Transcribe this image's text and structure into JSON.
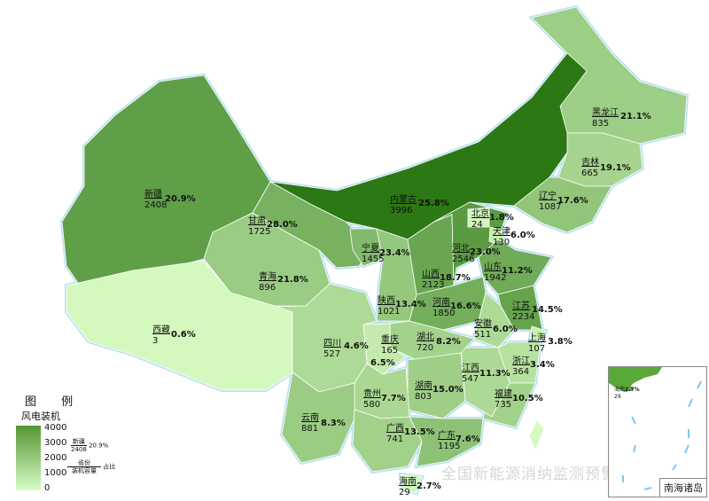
{
  "legend": {
    "title": "图 例",
    "subtitle": "风电装机",
    "ticks": [
      "4000",
      "3000",
      "2000",
      "1000",
      "0"
    ],
    "scale_max": 4000,
    "example": {
      "name": "新疆",
      "capacity": "2408",
      "share": "20.9%"
    },
    "key_name": "省份",
    "key_capacity": "装机容量",
    "key_share": "占比",
    "color_low": "#d6f9bf",
    "color_high": "#2c7814"
  },
  "watermark": "全国新能源消纳监测预警中心",
  "inset_label": "南海诸岛",
  "inset_hainan": {
    "name": "海南",
    "capacity": "29",
    "share": "2.7%"
  },
  "provinces": [
    {
      "name": "新疆",
      "capacity": "2408",
      "share": "20.9%"
    },
    {
      "name": "西藏",
      "capacity": "3",
      "share": "0.6%"
    },
    {
      "name": "青海",
      "capacity": "896",
      "share": "21.8%"
    },
    {
      "name": "甘肃",
      "capacity": "1725",
      "share": "28.0%"
    },
    {
      "name": "内蒙古",
      "capacity": "3996",
      "share": "25.8%"
    },
    {
      "name": "黑龙江",
      "capacity": "835",
      "share": "21.1%"
    },
    {
      "name": "吉林",
      "capacity": "665",
      "share": "19.1%"
    },
    {
      "name": "辽宁",
      "capacity": "1087",
      "share": "17.6%"
    },
    {
      "name": "宁夏",
      "capacity": "1455",
      "share": "23.4%"
    },
    {
      "name": "陕西",
      "capacity": "1021",
      "share": "13.4%"
    },
    {
      "name": "山西",
      "capacity": "2123",
      "share": "18.7%"
    },
    {
      "name": "河北",
      "capacity": "2546",
      "share": "23.0%"
    },
    {
      "name": "北京",
      "capacity": "24",
      "share": "1.8%"
    },
    {
      "name": "天津",
      "capacity": "130",
      "share": "6.0%"
    },
    {
      "name": "山东",
      "capacity": "1942",
      "share": "11.2%"
    },
    {
      "name": "河南",
      "capacity": "1850",
      "share": "16.6%"
    },
    {
      "name": "江苏",
      "capacity": "2234",
      "share": "14.5%"
    },
    {
      "name": "安徽",
      "capacity": "511",
      "share": "6.0%"
    },
    {
      "name": "上海",
      "capacity": "107",
      "share": "3.8%"
    },
    {
      "name": "浙江",
      "capacity": "364",
      "share": "3.4%"
    },
    {
      "name": "福建",
      "capacity": "735",
      "share": "10.5%"
    },
    {
      "name": "江西",
      "capacity": "547",
      "share": "11.3%"
    },
    {
      "name": "湖北",
      "capacity": "720",
      "share": "8.2%"
    },
    {
      "name": "湖南",
      "capacity": "803",
      "share": "15.0%"
    },
    {
      "name": "重庆",
      "capacity": "165",
      "share": "6.5%"
    },
    {
      "name": "四川",
      "capacity": "527",
      "share": "4.6%"
    },
    {
      "name": "贵州",
      "capacity": "580",
      "share": "7.7%"
    },
    {
      "name": "云南",
      "capacity": "881",
      "share": "8.3%"
    },
    {
      "name": "广西",
      "capacity": "741",
      "share": "13.5%"
    },
    {
      "name": "广东",
      "capacity": "1195",
      "share": "7.6%"
    },
    {
      "name": "海南",
      "capacity": "29",
      "share": "2.7%"
    }
  ]
}
